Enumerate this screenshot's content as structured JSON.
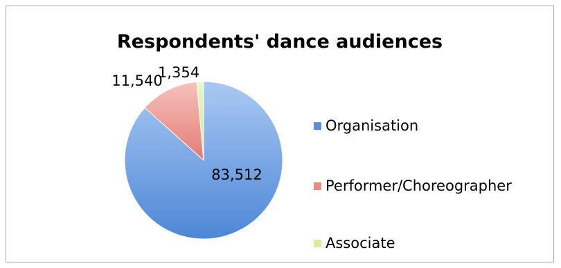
{
  "chart_data": {
    "type": "pie",
    "title": "Respondents' dance audiences",
    "categories": [
      "Organisation",
      "Performer/Choreographer",
      "Associate"
    ],
    "values": [
      83512,
      11540,
      1354
    ],
    "data_labels": [
      "83,512",
      "11,540",
      "1,354"
    ],
    "colors": [
      "#5b8fd9",
      "#e98a84",
      "#d7ee9a"
    ],
    "legend_position": "right"
  }
}
